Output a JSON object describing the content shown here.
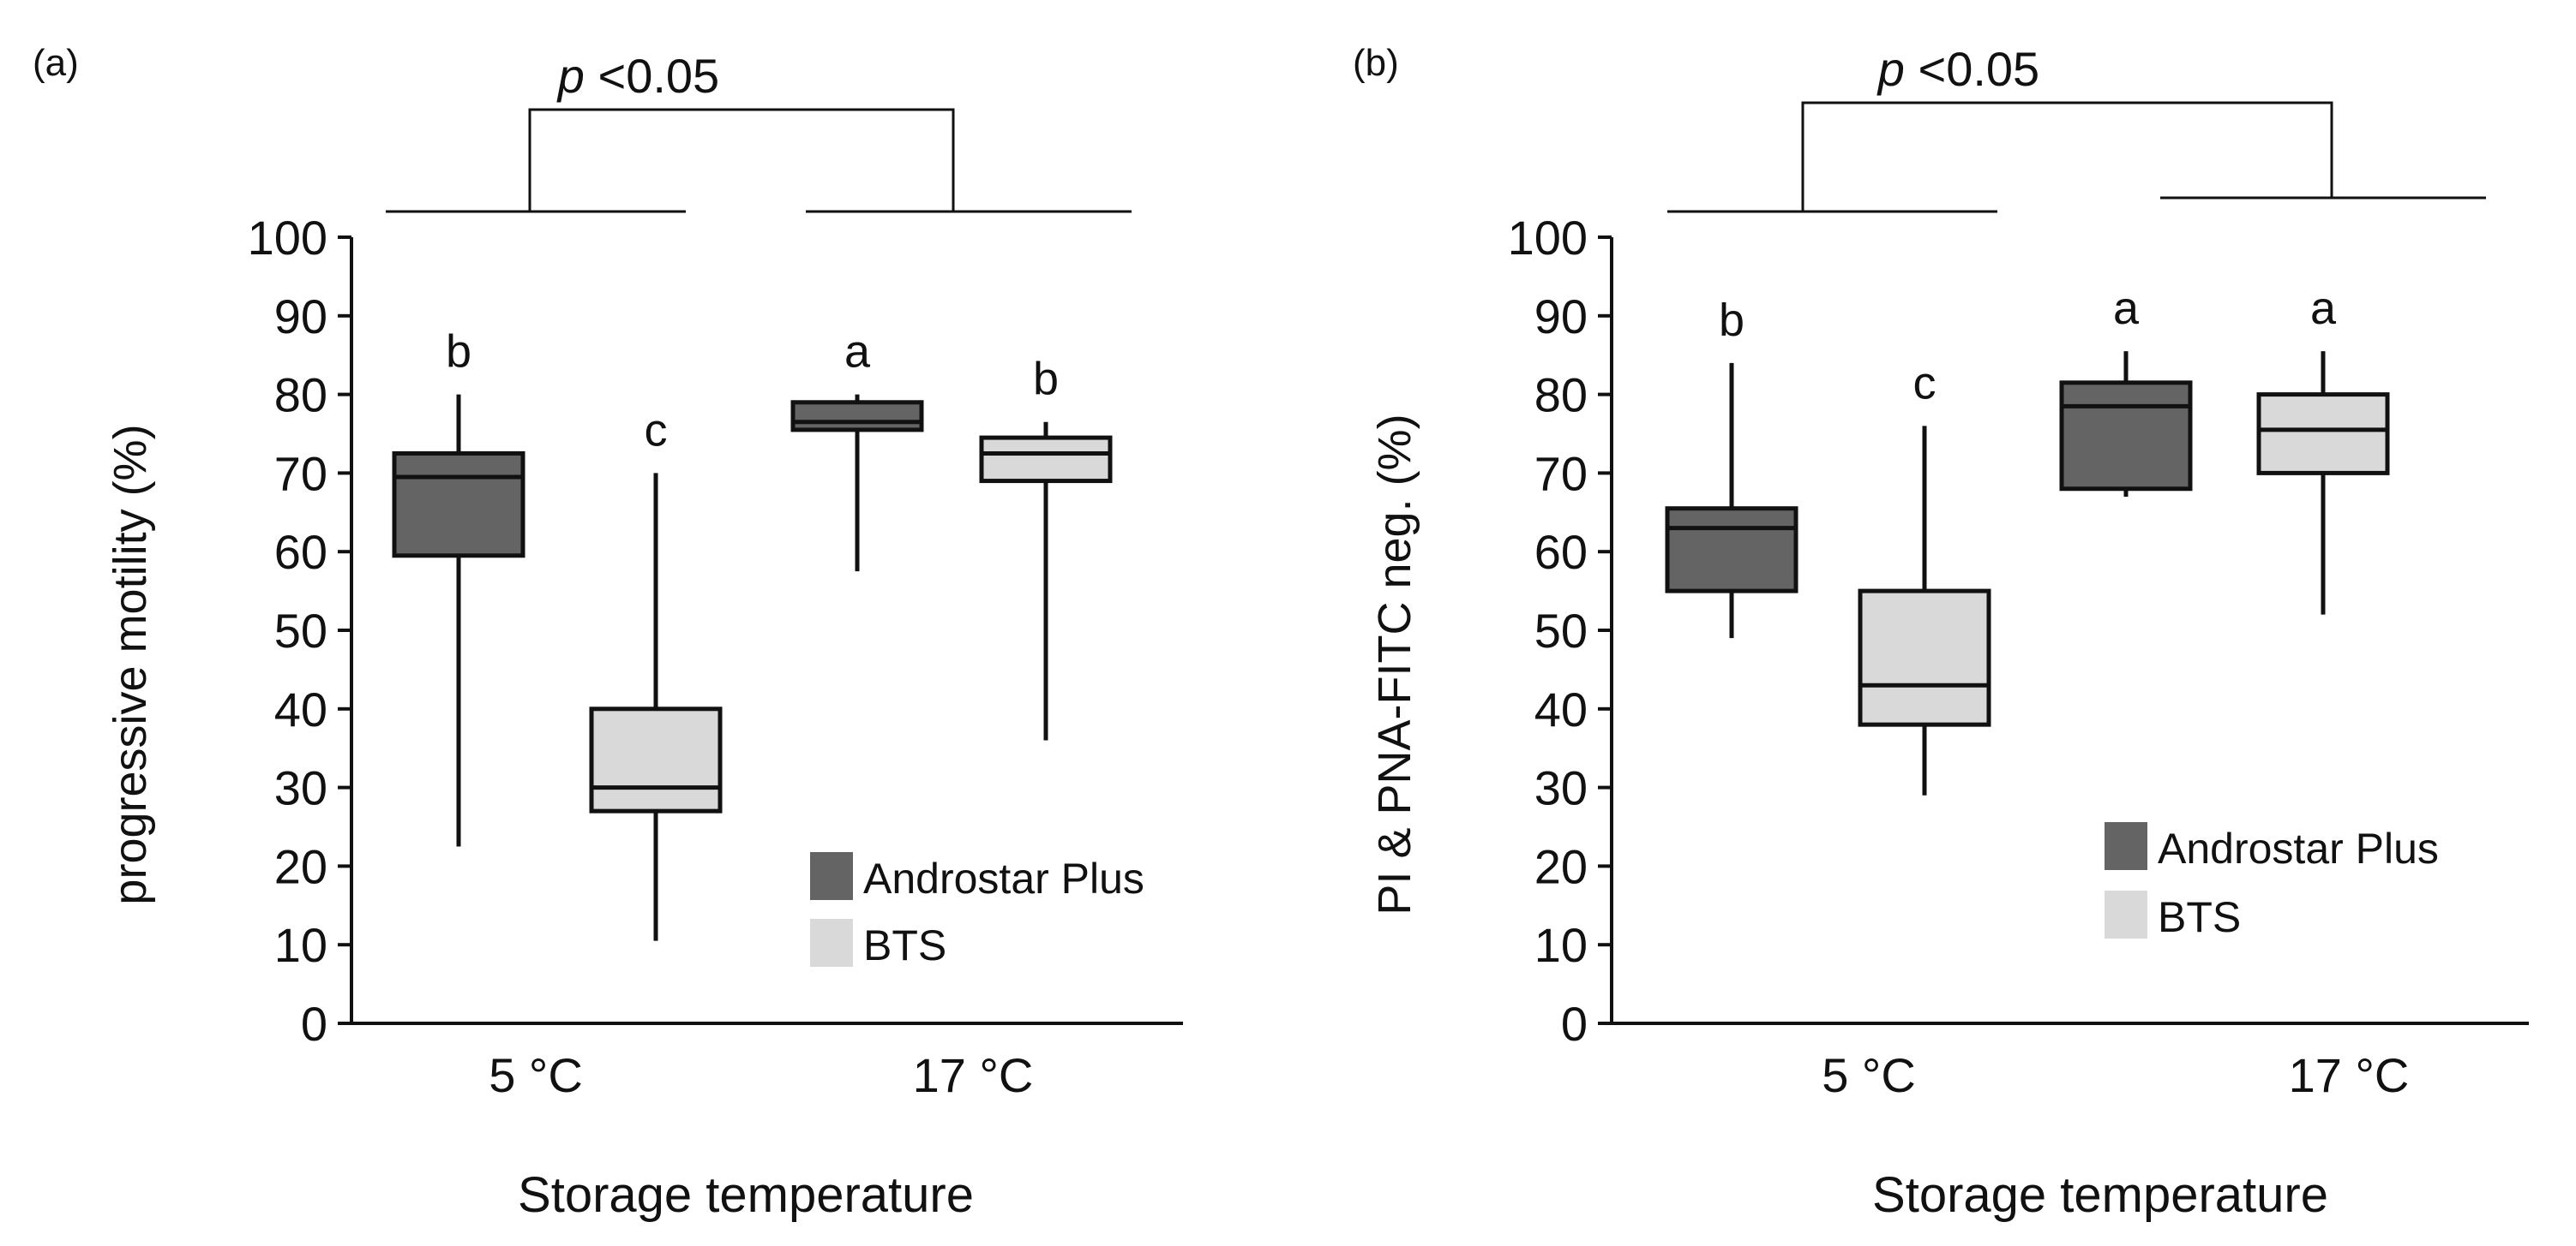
{
  "chart_data": [
    {
      "type": "box",
      "panel_label": "(a)",
      "ylabel": "progressive motility (%)",
      "xlabel": "Storage temperature",
      "ylim": [
        0,
        100
      ],
      "yticks": [
        0,
        10,
        20,
        30,
        40,
        50,
        60,
        70,
        80,
        90,
        100
      ],
      "groups": [
        "5 °C",
        "17 °C"
      ],
      "series": [
        "Androstar Plus",
        "BTS"
      ],
      "colors": {
        "Androstar Plus": "#646464",
        "BTS": "#d9d9d9"
      },
      "boxes": [
        {
          "group": "5 °C",
          "series": "Androstar Plus",
          "min": 22.5,
          "q1": 59.5,
          "median": 69.5,
          "q3": 72.5,
          "max": 80,
          "letter": "b"
        },
        {
          "group": "5 °C",
          "series": "BTS",
          "min": 10.5,
          "q1": 27,
          "median": 30,
          "q3": 40,
          "max": 70,
          "letter": "c"
        },
        {
          "group": "17 °C",
          "series": "Androstar Plus",
          "min": 57.5,
          "q1": 75.5,
          "median": 76.5,
          "q3": 79,
          "max": 80,
          "letter": "a"
        },
        {
          "group": "17 °C",
          "series": "BTS",
          "min": 36,
          "q1": 69,
          "median": 72.5,
          "q3": 74.5,
          "max": 76.5,
          "letter": "b"
        }
      ],
      "significance": "<0.05",
      "significance_symbol": "p"
    },
    {
      "type": "box",
      "panel_label": "(b)",
      "ylabel": "PI & PNA-FITC neg. (%)",
      "xlabel": "Storage temperature",
      "ylim": [
        0,
        100
      ],
      "yticks": [
        0,
        10,
        20,
        30,
        40,
        50,
        60,
        70,
        80,
        90,
        100
      ],
      "groups": [
        "5 °C",
        "17 °C"
      ],
      "series": [
        "Androstar Plus",
        "BTS"
      ],
      "colors": {
        "Androstar Plus": "#646464",
        "BTS": "#d9d9d9"
      },
      "boxes": [
        {
          "group": "5 °C",
          "series": "Androstar Plus",
          "min": 49,
          "q1": 55,
          "median": 63,
          "q3": 65.5,
          "max": 84,
          "letter": "b"
        },
        {
          "group": "5 °C",
          "series": "BTS",
          "min": 29,
          "q1": 38,
          "median": 43,
          "q3": 55,
          "max": 76,
          "letter": "c"
        },
        {
          "group": "17 °C",
          "series": "Androstar Plus",
          "min": 67,
          "q1": 68,
          "median": 78.5,
          "q3": 81.5,
          "max": 85.5,
          "letter": "a"
        },
        {
          "group": "17 °C",
          "series": "BTS",
          "min": 52,
          "q1": 70,
          "median": 75.5,
          "q3": 80,
          "max": 85.5,
          "letter": "a"
        }
      ],
      "significance": "<0.05",
      "significance_symbol": "p"
    }
  ]
}
